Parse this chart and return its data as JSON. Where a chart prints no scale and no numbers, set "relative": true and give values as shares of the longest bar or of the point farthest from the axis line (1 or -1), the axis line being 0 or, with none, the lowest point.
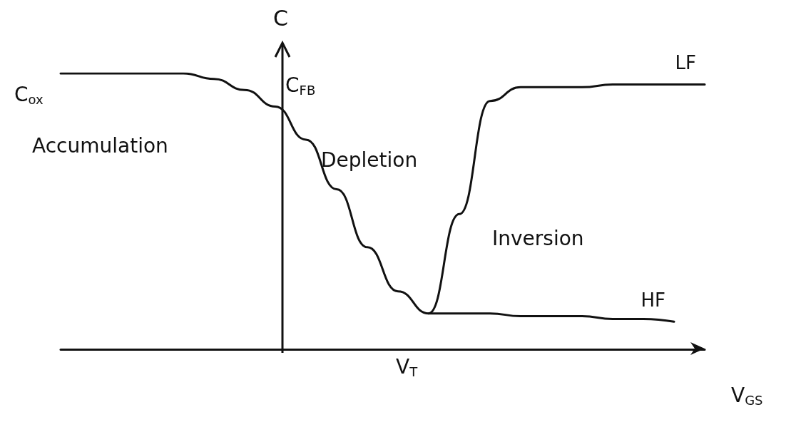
{
  "chart_data": {
    "type": "line",
    "relative": true,
    "xlabel": "V$_{GS}$",
    "ylabel": "C",
    "categories": [
      null,
      null,
      null,
      null,
      null,
      null,
      null,
      null,
      null,
      null,
      null,
      null,
      null,
      null,
      null,
      null,
      null,
      null,
      null,
      null,
      null,
      null
    ],
    "series": [
      {
        "name": "LF",
        "color": "#111111",
        "values": [
          1.0,
          1.0,
          1.0,
          1.0,
          1.0,
          0.98,
          0.94,
          0.88,
          0.76,
          0.58,
          0.37,
          0.21,
          0.13,
          0.49,
          0.9,
          0.95,
          0.95,
          0.95,
          0.96,
          0.96,
          0.96,
          0.96
        ]
      },
      {
        "name": "HF",
        "color": "#111111",
        "values": [
          null,
          null,
          null,
          null,
          null,
          null,
          null,
          null,
          null,
          null,
          null,
          null,
          0.13,
          0.13,
          0.13,
          0.12,
          0.12,
          0.12,
          0.11,
          0.11,
          0.1,
          null
        ]
      }
    ],
    "annotations": [
      "C$_{ox}$",
      "C$_{FB}$",
      "Accumulation",
      "Depletion",
      "Inversion",
      "V$_{T}$"
    ],
    "marker": "none",
    "line_style": "solid",
    "grid": false,
    "legend": false
  }
}
